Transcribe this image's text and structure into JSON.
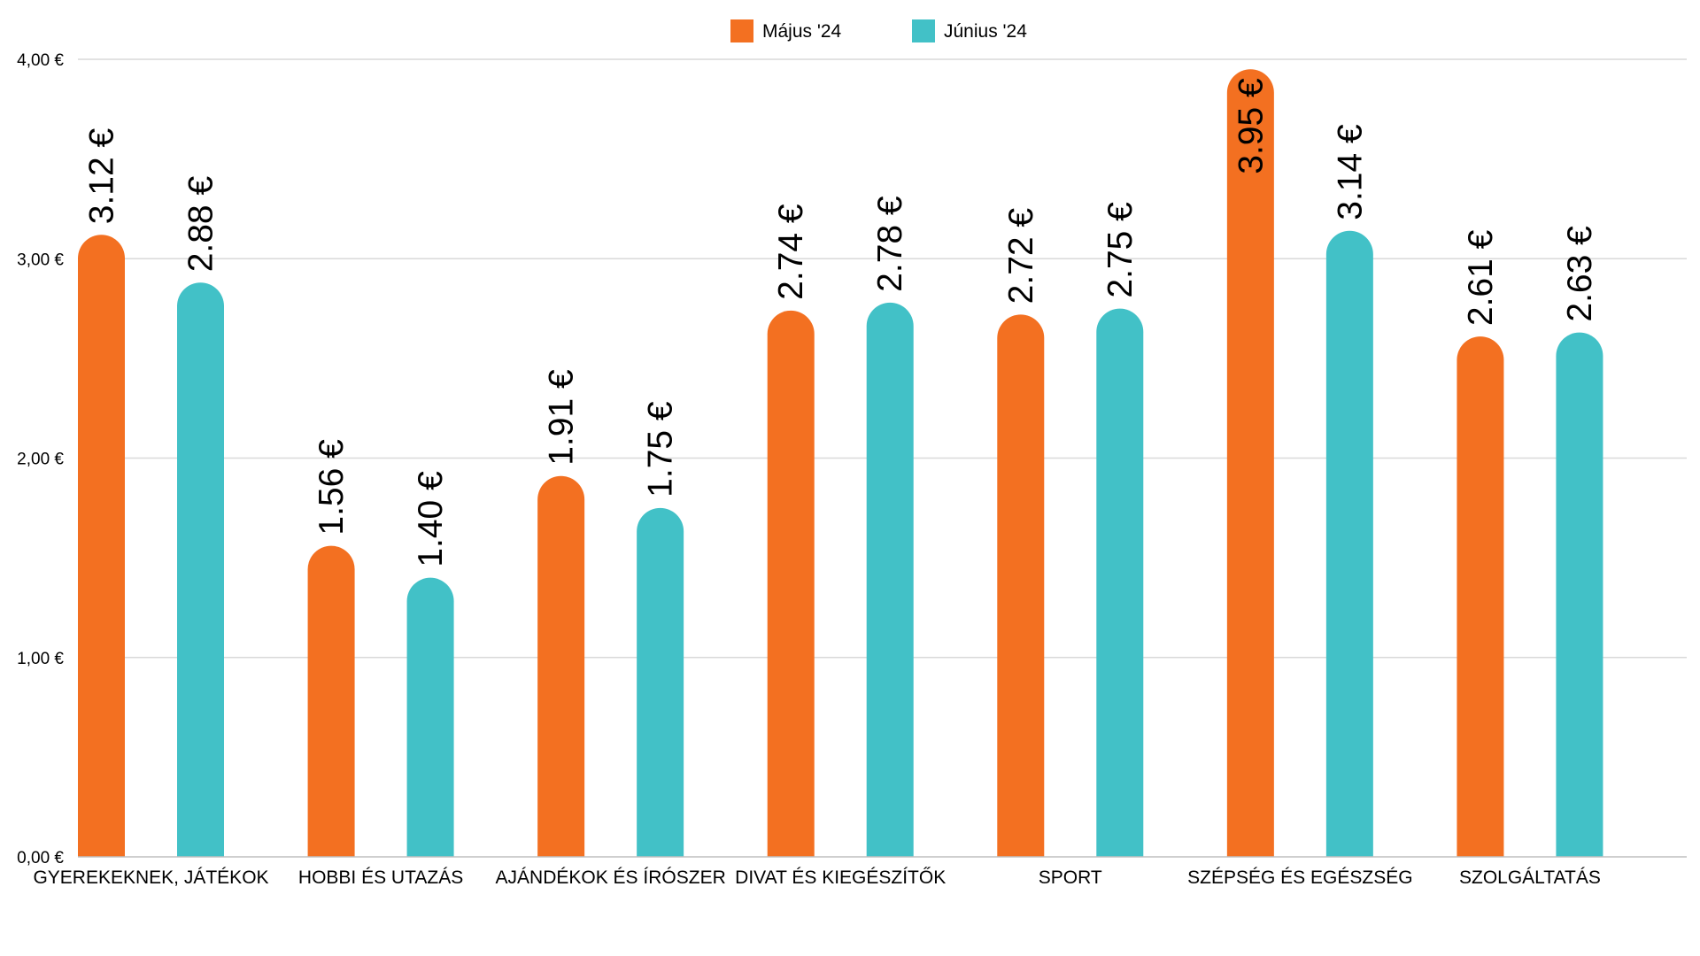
{
  "chart_data": {
    "type": "bar",
    "title": "",
    "xlabel": "",
    "ylabel": "",
    "ylim": [
      0,
      4
    ],
    "yticks": [
      {
        "value": 0,
        "label": "0,00 €"
      },
      {
        "value": 1,
        "label": "1,00 €"
      },
      {
        "value": 2,
        "label": "2,00 €"
      },
      {
        "value": 3,
        "label": "3,00 €"
      },
      {
        "value": 4,
        "label": "4,00 €"
      }
    ],
    "grid": true,
    "legend_position": "top-center",
    "categories": [
      "GYEREKEKNEK, JÁTÉKOK",
      "HOBBI ÉS UTAZÁS",
      "AJÁNDÉKOK ÉS ÍRÓSZER",
      "DIVAT ÉS KIEGÉSZÍTŐK",
      "SPORT",
      "SZÉPSÉG ÉS EGÉSZSÉG",
      "SZOLGÁLTATÁS"
    ],
    "series": [
      {
        "name": "Május '24",
        "color": "#F37021",
        "values": [
          3.12,
          1.56,
          1.91,
          2.74,
          2.72,
          3.95,
          2.61
        ],
        "labels": [
          "3.12 €",
          "1.56 €",
          "1.91 €",
          "2.74 €",
          "2.72 €",
          "3.95 €",
          "2.61 €"
        ]
      },
      {
        "name": "Június '24",
        "color": "#42C1C7",
        "values": [
          2.88,
          1.4,
          1.75,
          2.78,
          2.75,
          3.14,
          2.63
        ],
        "labels": [
          "2.88 €",
          "1.40 €",
          "1.75 €",
          "2.78 €",
          "2.75 €",
          "3.14 €",
          "2.63 €"
        ]
      }
    ]
  }
}
